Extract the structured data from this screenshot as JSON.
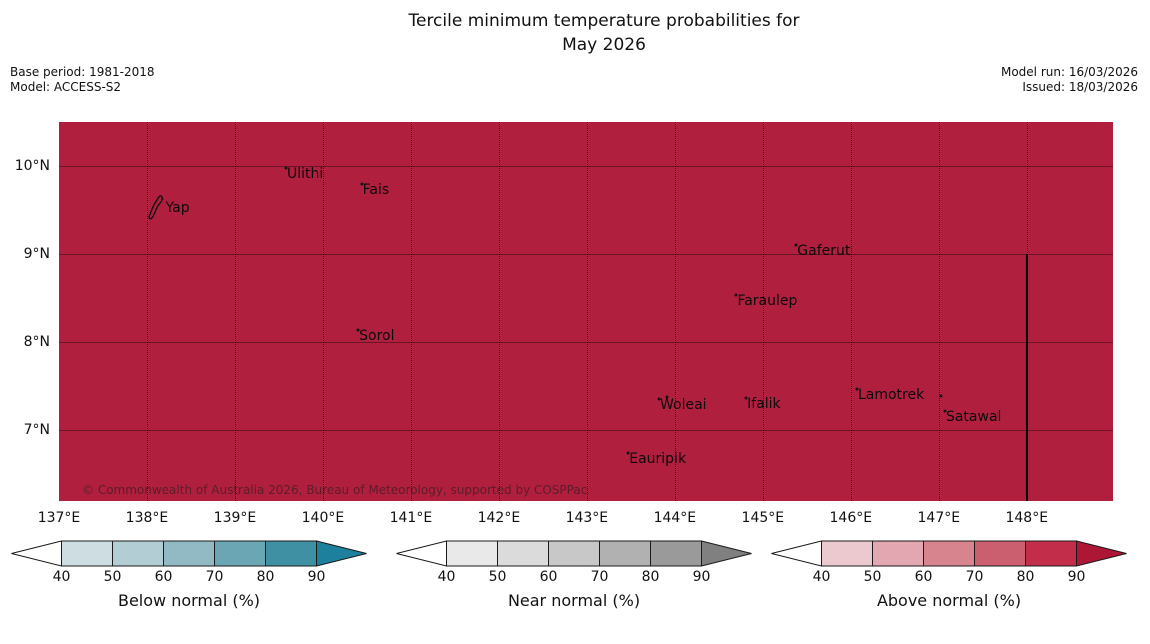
{
  "title": {
    "line1": "Tercile minimum temperature probabilities for",
    "line2": "May 2026"
  },
  "meta": {
    "base_period": "Base period: 1981-2018",
    "model": "Model: ACCESS-S2",
    "model_run": "Model run: 16/03/2026",
    "issued": "Issued: 18/03/2026"
  },
  "chart_data": {
    "type": "heatmap",
    "title": "Tercile minimum temperature probabilities for May 2026",
    "region_fill_color": "#b01f3e",
    "region_fill_meaning": "Above normal tercile probability (80-90%+) over whole domain",
    "lon_range": [
      137,
      148.98
    ],
    "lat_range": [
      6.19,
      10.5
    ],
    "x_ticks": [
      {
        "label": "137°E",
        "lon": 137
      },
      {
        "label": "138°E",
        "lon": 138
      },
      {
        "label": "139°E",
        "lon": 139
      },
      {
        "label": "140°E",
        "lon": 140
      },
      {
        "label": "141°E",
        "lon": 141
      },
      {
        "label": "142°E",
        "lon": 142
      },
      {
        "label": "143°E",
        "lon": 143
      },
      {
        "label": "144°E",
        "lon": 144
      },
      {
        "label": "145°E",
        "lon": 145
      },
      {
        "label": "146°E",
        "lon": 146
      },
      {
        "label": "147°E",
        "lon": 147
      },
      {
        "label": "148°E",
        "lon": 148
      }
    ],
    "y_ticks": [
      {
        "label": "10°N",
        "lat": 10
      },
      {
        "label": "9°N",
        "lat": 9
      },
      {
        "label": "8°N",
        "lat": 8
      },
      {
        "label": "7°N",
        "lat": 7
      }
    ],
    "boundary_line": {
      "lon": 148,
      "lat_from": 9,
      "lat_to": 6.19,
      "color": "#000000"
    },
    "islands": [
      {
        "name": "Yap",
        "lon": 138.12,
        "lat": 9.52,
        "marker": "island-shape",
        "label_dx": 8,
        "label_dy": -8
      },
      {
        "name": "Ulithi",
        "lon": 139.58,
        "lat": 9.98
      },
      {
        "name": "Fais",
        "lon": 140.44,
        "lat": 9.8
      },
      {
        "name": "Sorol",
        "lon": 140.4,
        "lat": 8.14
      },
      {
        "name": "Gaferut",
        "lon": 145.38,
        "lat": 9.1
      },
      {
        "name": "Faraulep",
        "lon": 144.7,
        "lat": 8.53
      },
      {
        "name": "Woleai",
        "lon": 143.82,
        "lat": 7.35
      },
      {
        "name": "Ifalik",
        "lon": 144.81,
        "lat": 7.36
      },
      {
        "name": "Lamotrek",
        "lon": 146.07,
        "lat": 7.47
      },
      {
        "name": "Satawal",
        "lon": 147.07,
        "lat": 7.21
      },
      {
        "name": "Eauripik",
        "lon": 143.47,
        "lat": 6.74
      }
    ],
    "unnamed_dots": [
      {
        "lon": 147.02,
        "lat": 7.38
      },
      {
        "lon": 143.91,
        "lat": 7.37
      }
    ]
  },
  "map": {
    "copyright": "© Commonwealth of Australia 2026, Bureau of Meteorology, supported by COSPPac"
  },
  "colorbars": [
    {
      "id": "below",
      "label": "Below normal (%)",
      "ticks": [
        "40",
        "50",
        "60",
        "70",
        "80",
        "90"
      ],
      "segment_colors": [
        "#cddde1",
        "#b2cdd3",
        "#92bac4",
        "#6ba6b4",
        "#4090a4"
      ],
      "arrow_color": "#1d809c",
      "under_40_color": "#ffffff"
    },
    {
      "id": "near",
      "label": "Near normal (%)",
      "ticks": [
        "40",
        "50",
        "60",
        "70",
        "80",
        "90"
      ],
      "segment_colors": [
        "#e9e9e9",
        "#dbdbdb",
        "#c8c8c8",
        "#b1b1b1",
        "#9a9a9a"
      ],
      "arrow_color": "#808080",
      "under_40_color": "#ffffff"
    },
    {
      "id": "above",
      "label": "Above normal (%)",
      "ticks": [
        "40",
        "50",
        "60",
        "70",
        "80",
        "90"
      ],
      "segment_colors": [
        "#ecc9cf",
        "#e2a7b1",
        "#d8848f",
        "#cb5f70",
        "#c22e4a"
      ],
      "arrow_color": "#ae1635",
      "under_40_color": "#ffffff"
    }
  ]
}
